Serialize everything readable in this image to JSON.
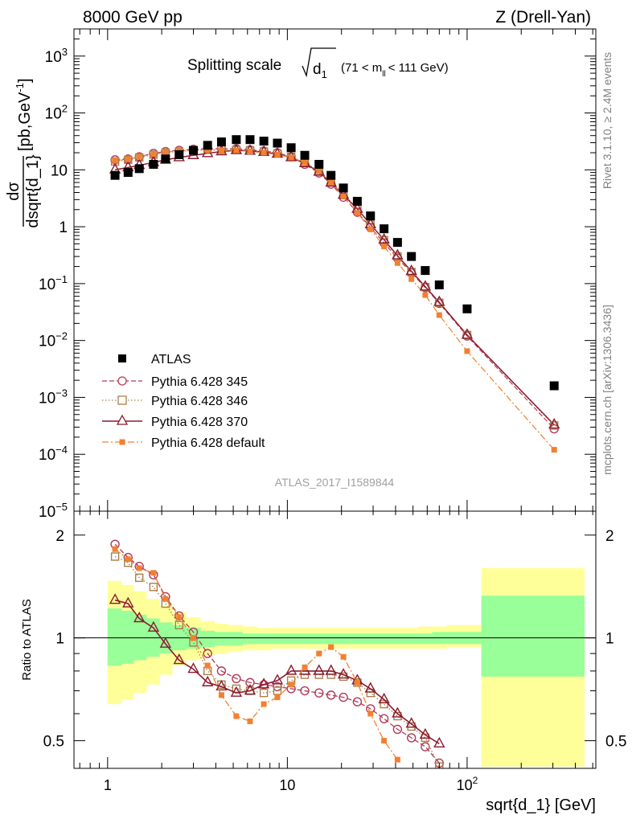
{
  "header": {
    "left": "8000 GeV pp",
    "right": "Z (Drell-Yan)"
  },
  "side_labels": {
    "rivet": "Rivet 3.1.10, ≥ 2.4M events",
    "mcplots": "mcplots.cern.ch [arXiv:1306.3436]"
  },
  "chart_data": [
    {
      "type": "scatter",
      "panel": "main",
      "title": "Splitting scale √d1 (71 < m_ll < 111 GeV)",
      "title_parts": {
        "main": "Splitting scale",
        "radicand": "d",
        "radicand_sub": "1",
        "cut_open": "(71 < m",
        "cut_sub": "ll",
        "cut_close": "< 111 GeV)"
      },
      "ylabel_top": "dσ",
      "ylabel_bottom": "dsqrt{d_1}",
      "ylabel_unit": "[pb,GeV",
      "ylabel_unit_exp": "-1",
      "ylabel_unit_close": "]",
      "xscale": "log",
      "yscale": "log",
      "xlim": [
        0.65,
        520
      ],
      "ylim": [
        1e-05,
        3000
      ],
      "yticks": [
        {
          "v": 1000,
          "base": "10",
          "exp": "3"
        },
        {
          "v": 100,
          "base": "10",
          "exp": "2"
        },
        {
          "v": 10,
          "base": "10",
          "exp": ""
        },
        {
          "v": 1,
          "base": "1",
          "exp": ""
        },
        {
          "v": 0.1,
          "base": "10",
          "exp": "−1"
        },
        {
          "v": 0.01,
          "base": "10",
          "exp": "−2"
        },
        {
          "v": 0.001,
          "base": "10",
          "exp": "−3"
        },
        {
          "v": 0.0001,
          "base": "10",
          "exp": "−4"
        },
        {
          "v": 1e-05,
          "base": "10",
          "exp": "−5"
        }
      ],
      "watermark": "ATLAS_2017_I1589844",
      "legend_position": "bottom-left",
      "series": [
        {
          "name": "ATLAS",
          "marker": "filled-square",
          "color": "#000000",
          "x": [
            1.1,
            1.3,
            1.5,
            1.8,
            2.1,
            2.5,
            3.0,
            3.6,
            4.3,
            5.2,
            6.2,
            7.4,
            8.8,
            10.5,
            12.5,
            15.0,
            17.5,
            20.5,
            24.5,
            29.0,
            34.5,
            41.0,
            49.0,
            58.5,
            70.0,
            100.0,
            305.0
          ],
          "y": [
            8.0,
            9.0,
            10.5,
            12.5,
            15.5,
            18.5,
            22.0,
            27.0,
            31.0,
            34.0,
            34.0,
            32.0,
            29.5,
            24.5,
            18.0,
            12.5,
            8.0,
            4.8,
            2.8,
            1.55,
            0.92,
            0.53,
            0.3,
            0.17,
            0.095,
            0.036,
            0.0016
          ]
        },
        {
          "name": "Pythia 6.428 345",
          "marker": "open-circle",
          "line": "dashed",
          "color": "#b03a58",
          "x": [
            1.1,
            1.3,
            1.5,
            1.8,
            2.1,
            2.5,
            3.0,
            3.6,
            4.3,
            5.2,
            6.2,
            7.4,
            8.8,
            10.5,
            12.5,
            15.0,
            17.5,
            20.5,
            24.5,
            29.0,
            34.5,
            41.0,
            49.0,
            58.5,
            70.0,
            100.0,
            305.0
          ],
          "y": [
            15.0,
            15.5,
            17.0,
            19.5,
            21.0,
            22.0,
            23.0,
            23.5,
            23.5,
            23.5,
            22.5,
            21.5,
            20.0,
            17.0,
            12.5,
            8.8,
            5.6,
            3.3,
            1.8,
            0.97,
            0.52,
            0.28,
            0.155,
            0.085,
            0.045,
            0.012,
            0.00028
          ]
        },
        {
          "name": "Pythia 6.428 346",
          "marker": "open-square",
          "line": "dotted",
          "color": "#a8804a",
          "x": [
            1.1,
            1.3,
            1.5,
            1.8,
            2.1,
            2.5,
            3.0,
            3.6,
            4.3,
            5.2,
            6.2,
            7.4,
            8.8,
            10.5,
            12.5,
            15.0,
            17.5,
            20.5,
            24.5,
            29.0,
            34.5,
            41.0,
            49.0,
            58.5,
            70.0,
            100.0,
            305.0
          ],
          "y": [
            14.0,
            15.0,
            16.5,
            18.5,
            20.0,
            21.0,
            22.0,
            22.5,
            22.5,
            22.5,
            22.0,
            21.0,
            19.5,
            17.0,
            13.5,
            9.5,
            6.2,
            3.8,
            2.1,
            1.1,
            0.58,
            0.3,
            0.16,
            0.087,
            0.046,
            0.0125,
            0.00032
          ]
        },
        {
          "name": "Pythia 6.428 370",
          "marker": "open-triangle",
          "line": "solid",
          "color": "#8b1a2e",
          "x": [
            1.1,
            1.3,
            1.5,
            1.8,
            2.1,
            2.5,
            3.0,
            3.6,
            4.3,
            5.2,
            6.2,
            7.4,
            8.8,
            10.5,
            12.5,
            15.0,
            17.5,
            20.5,
            24.5,
            29.0,
            34.5,
            41.0,
            49.0,
            58.5,
            70.0,
            100.0,
            305.0
          ],
          "y": [
            10.0,
            11.0,
            12.0,
            13.5,
            15.0,
            16.5,
            18.0,
            19.5,
            21.0,
            22.0,
            21.5,
            20.5,
            19.0,
            16.5,
            13.0,
            9.2,
            5.9,
            3.6,
            2.05,
            1.1,
            0.59,
            0.31,
            0.165,
            0.088,
            0.047,
            0.0125,
            0.00033
          ]
        },
        {
          "name": "Pythia 6.428 default",
          "marker": "small-filled-square",
          "line": "dashdot",
          "color": "#f28030",
          "x": [
            1.1,
            1.3,
            1.5,
            1.8,
            2.1,
            2.5,
            3.0,
            3.6,
            4.3,
            5.2,
            6.2,
            7.4,
            8.8,
            10.5,
            12.5,
            15.0,
            17.5,
            20.5,
            24.5,
            29.0,
            34.5,
            41.0,
            49.0,
            58.5,
            70.0,
            100.0,
            305.0
          ],
          "y": [
            14.5,
            15.5,
            17.0,
            19.0,
            20.5,
            21.5,
            22.0,
            22.5,
            22.0,
            22.0,
            21.0,
            20.0,
            18.5,
            16.5,
            13.5,
            9.5,
            6.0,
            3.4,
            1.75,
            0.9,
            0.45,
            0.23,
            0.12,
            0.063,
            0.028,
            0.0065,
            0.00012
          ]
        }
      ]
    },
    {
      "type": "line",
      "panel": "ratio",
      "ylabel": "Ratio to ATLAS",
      "xlabel": "sqrt{d_1} [GeV]",
      "xscale": "log",
      "yscale": "log",
      "xlim": [
        0.65,
        520
      ],
      "ylim": [
        0.415,
        2.35
      ],
      "yticks": [
        {
          "v": 2,
          "label": "2"
        },
        {
          "v": 1,
          "label": "1"
        },
        {
          "v": 0.5,
          "label": "0.5"
        }
      ],
      "xticks": [
        {
          "v": 1,
          "base": "1",
          "exp": ""
        },
        {
          "v": 10,
          "base": "10",
          "exp": ""
        },
        {
          "v": 100,
          "base": "10",
          "exp": "2"
        }
      ],
      "reference_line": 1,
      "uncertainty_bands": {
        "x_edges": [
          1.0,
          1.2,
          1.4,
          1.65,
          1.95,
          2.3,
          2.75,
          3.3,
          3.95,
          4.7,
          5.65,
          6.8,
          8.1,
          9.6,
          11.5,
          13.7,
          16.3,
          19.0,
          22.5,
          26.5,
          31.5,
          37.5,
          45.0,
          53.5,
          64.0,
          77.0,
          120.0,
          120.0,
          450.0
        ],
        "stat_sys_total_lo": [
          0.64,
          0.66,
          0.69,
          0.73,
          0.78,
          0.83,
          0.86,
          0.89,
          0.9,
          0.91,
          0.92,
          0.92,
          0.93,
          0.93,
          0.93,
          0.93,
          0.93,
          0.93,
          0.93,
          0.93,
          0.93,
          0.93,
          0.93,
          0.93,
          0.93,
          0.94,
          0.94,
          0.42,
          0.42
        ],
        "stat_sys_total_hi": [
          1.47,
          1.43,
          1.37,
          1.3,
          1.24,
          1.19,
          1.15,
          1.12,
          1.1,
          1.09,
          1.08,
          1.07,
          1.07,
          1.07,
          1.07,
          1.07,
          1.07,
          1.07,
          1.07,
          1.07,
          1.07,
          1.07,
          1.07,
          1.08,
          1.08,
          1.09,
          1.09,
          1.6,
          1.6
        ],
        "inner_lo": [
          0.83,
          0.84,
          0.86,
          0.88,
          0.9,
          0.92,
          0.93,
          0.94,
          0.95,
          0.95,
          0.96,
          0.96,
          0.96,
          0.96,
          0.96,
          0.96,
          0.96,
          0.96,
          0.96,
          0.96,
          0.96,
          0.96,
          0.96,
          0.96,
          0.96,
          0.96,
          0.96,
          0.77,
          0.77
        ],
        "inner_hi": [
          1.22,
          1.2,
          1.17,
          1.14,
          1.11,
          1.09,
          1.07,
          1.05,
          1.04,
          1.04,
          1.03,
          1.03,
          1.03,
          1.03,
          1.03,
          1.03,
          1.03,
          1.03,
          1.03,
          1.03,
          1.03,
          1.03,
          1.03,
          1.03,
          1.04,
          1.04,
          1.04,
          1.33,
          1.33
        ]
      },
      "series": [
        {
          "name": "Pythia 6.428 345",
          "x": [
            1.1,
            1.3,
            1.5,
            1.8,
            2.1,
            2.5,
            3.0,
            3.6,
            4.3,
            5.2,
            6.2,
            7.4,
            8.8,
            10.5,
            12.5,
            15.0,
            17.5,
            20.5,
            24.5,
            29.0,
            34.5,
            41.0,
            49.0,
            58.5,
            70.0
          ],
          "y": [
            1.88,
            1.72,
            1.62,
            1.53,
            1.32,
            1.16,
            1.04,
            0.9,
            0.8,
            0.76,
            0.74,
            0.73,
            0.72,
            0.71,
            0.7,
            0.69,
            0.68,
            0.67,
            0.65,
            0.62,
            0.58,
            0.54,
            0.51,
            0.48,
            0.43
          ]
        },
        {
          "name": "Pythia 6.428 346",
          "x": [
            1.1,
            1.3,
            1.5,
            1.8,
            2.1,
            2.5,
            3.0,
            3.6,
            4.3,
            5.2,
            6.2,
            7.4,
            8.8,
            10.5,
            12.5,
            15.0,
            17.5,
            20.5,
            24.5,
            29.0,
            34.5,
            41.0,
            49.0,
            58.5,
            70.0
          ],
          "y": [
            1.73,
            1.66,
            1.5,
            1.41,
            1.26,
            1.09,
            0.97,
            0.8,
            0.73,
            0.71,
            0.7,
            0.69,
            0.7,
            0.75,
            0.78,
            0.78,
            0.78,
            0.77,
            0.74,
            0.69,
            0.64,
            0.59,
            0.55,
            0.51,
            0.42
          ]
        },
        {
          "name": "Pythia 6.428 370",
          "x": [
            1.1,
            1.3,
            1.5,
            1.8,
            2.1,
            2.5,
            3.0,
            3.6,
            4.3,
            5.2,
            6.2,
            7.4,
            8.8,
            10.5,
            12.5,
            15.0,
            17.5,
            20.5,
            24.5,
            29.0,
            34.5,
            41.0,
            49.0,
            58.5,
            70.0
          ],
          "y": [
            1.29,
            1.26,
            1.14,
            1.07,
            0.96,
            0.86,
            0.81,
            0.74,
            0.72,
            0.69,
            0.7,
            0.73,
            0.75,
            0.8,
            0.8,
            0.8,
            0.8,
            0.78,
            0.75,
            0.71,
            0.66,
            0.6,
            0.56,
            0.52,
            0.49
          ]
        },
        {
          "name": "Pythia 6.428 default",
          "x": [
            1.1,
            1.3,
            1.5,
            1.8,
            2.1,
            2.5,
            3.0,
            3.6,
            4.3,
            5.2,
            6.2,
            7.4,
            8.8,
            10.5,
            12.5,
            15.0,
            17.5,
            20.5,
            24.5,
            29.0,
            34.5,
            41.0
          ],
          "y": [
            1.82,
            1.7,
            1.6,
            1.55,
            1.3,
            1.15,
            1.0,
            0.83,
            0.68,
            0.59,
            0.57,
            0.64,
            0.67,
            0.73,
            0.82,
            0.9,
            0.94,
            0.88,
            0.74,
            0.6,
            0.5,
            0.44
          ]
        }
      ]
    }
  ]
}
